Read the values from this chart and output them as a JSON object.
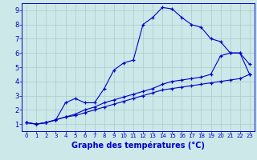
{
  "xlabel": "Graphe des températures (°C)",
  "background_color": "#cce8e8",
  "grid_color": "#aacccc",
  "line_color": "#0000cc",
  "xlim": [
    -0.5,
    23.5
  ],
  "ylim": [
    0.5,
    9.5
  ],
  "xticks": [
    0,
    1,
    2,
    3,
    4,
    5,
    6,
    7,
    8,
    9,
    10,
    11,
    12,
    13,
    14,
    15,
    16,
    17,
    18,
    19,
    20,
    21,
    22,
    23
  ],
  "yticks": [
    1,
    2,
    3,
    4,
    5,
    6,
    7,
    8,
    9
  ],
  "line1_x": [
    0,
    1,
    2,
    3,
    4,
    5,
    6,
    7,
    8,
    9,
    10,
    11,
    12,
    13,
    14,
    15,
    16,
    17,
    18,
    19,
    20,
    21,
    22,
    23
  ],
  "line1_y": [
    1.1,
    1.0,
    1.1,
    1.3,
    2.5,
    2.8,
    2.5,
    2.5,
    3.5,
    4.8,
    5.3,
    5.5,
    8.0,
    8.5,
    9.2,
    9.1,
    8.5,
    8.0,
    7.8,
    7.0,
    6.8,
    6.0,
    6.0,
    4.5
  ],
  "line2_x": [
    0,
    1,
    2,
    3,
    4,
    5,
    6,
    7,
    8,
    9,
    10,
    11,
    12,
    13,
    14,
    15,
    16,
    17,
    18,
    19,
    20,
    21,
    22,
    23
  ],
  "line2_y": [
    1.1,
    1.0,
    1.1,
    1.3,
    1.5,
    1.6,
    1.8,
    2.0,
    2.2,
    2.4,
    2.6,
    2.8,
    3.0,
    3.2,
    3.4,
    3.5,
    3.6,
    3.7,
    3.8,
    3.9,
    4.0,
    4.1,
    4.2,
    4.5
  ],
  "line3_x": [
    0,
    1,
    2,
    3,
    4,
    5,
    6,
    7,
    8,
    9,
    10,
    11,
    12,
    13,
    14,
    15,
    16,
    17,
    18,
    19,
    20,
    21,
    22,
    23
  ],
  "line3_y": [
    1.1,
    1.0,
    1.1,
    1.3,
    1.5,
    1.7,
    2.0,
    2.2,
    2.5,
    2.7,
    2.9,
    3.1,
    3.3,
    3.5,
    3.8,
    4.0,
    4.1,
    4.2,
    4.3,
    4.5,
    5.8,
    6.0,
    6.0,
    5.2
  ],
  "xlabel_fontsize": 7,
  "tick_fontsize_x": 5,
  "tick_fontsize_y": 6
}
